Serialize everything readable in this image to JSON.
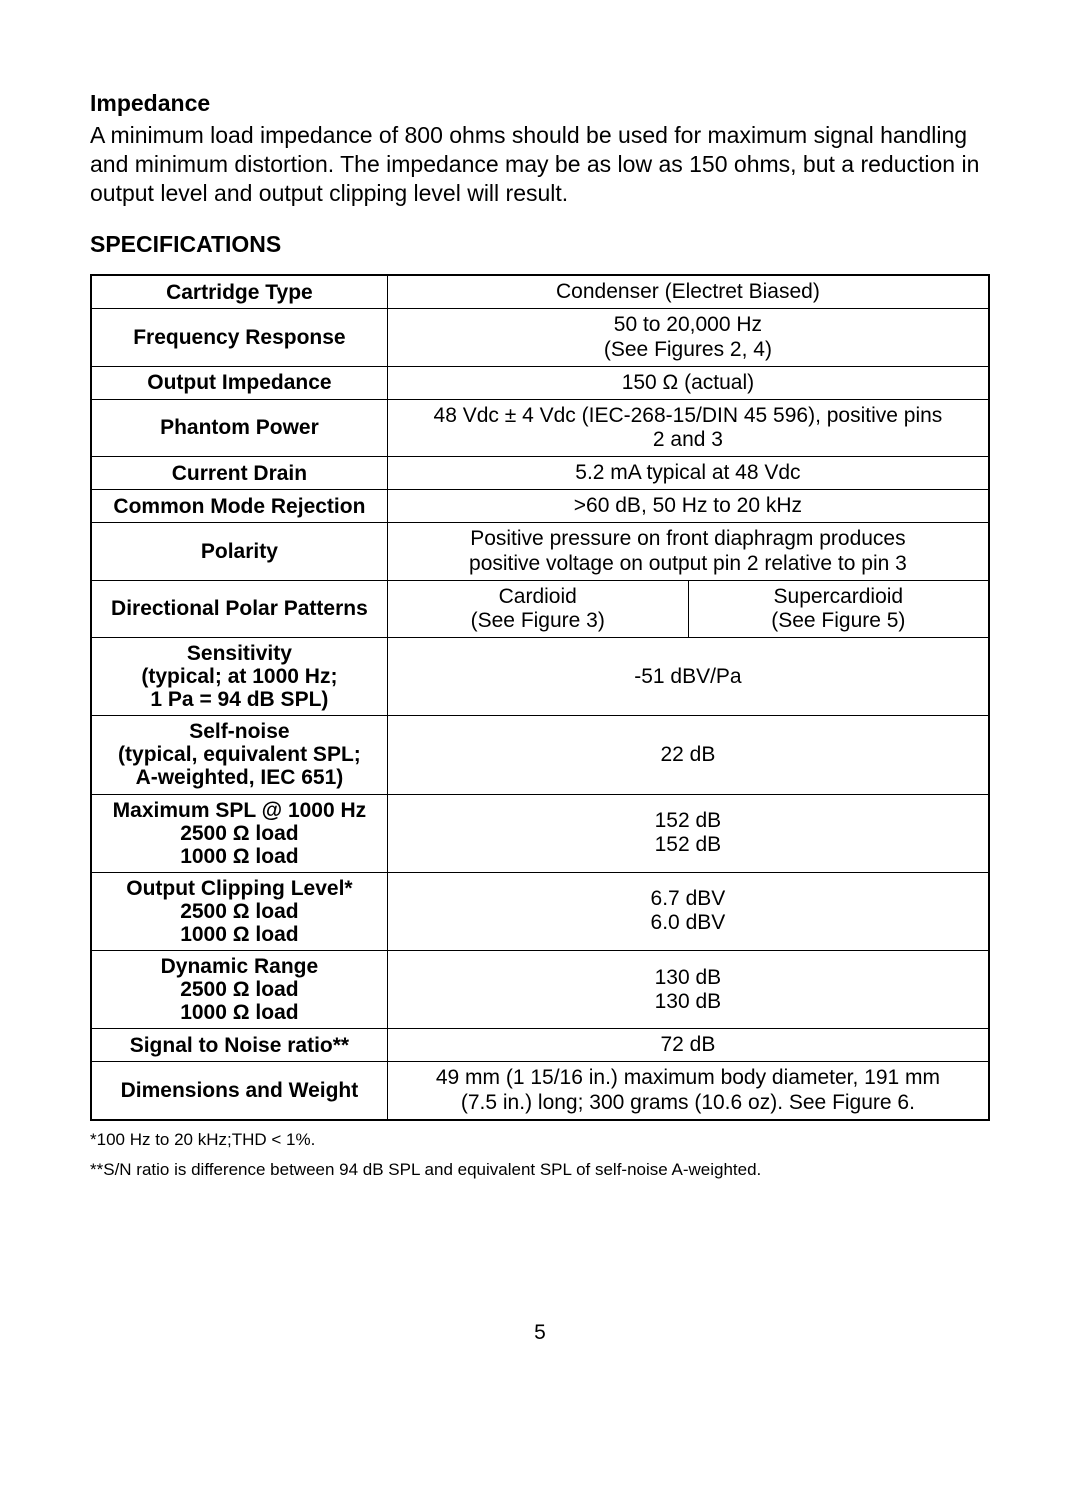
{
  "impedance": {
    "title": "Impedance",
    "body": "A minimum load impedance of 800 ohms should be used for maximum signal handling and minimum distortion. The impedance may be as low as 150 ohms, but a reduction in output level and output clipping level will result."
  },
  "specs_heading": "SPECIFICATIONS",
  "rows": {
    "cartridge": {
      "label": "Cartridge Type",
      "value": "Condenser (Electret Biased)"
    },
    "freq": {
      "label": "Frequency Response",
      "v1": "50 to 20,000 Hz",
      "v2": "(See Figures 2, 4)"
    },
    "out_imp": {
      "label": "Output Impedance",
      "value": "150 Ω (actual)"
    },
    "phantom": {
      "label": "Phantom Power",
      "v1": "48 Vdc ± 4 Vdc (IEC-268-15/DIN 45 596), positive pins",
      "v2": "2 and 3"
    },
    "drain": {
      "label": "Current Drain",
      "value": "5.2 mA typical at 48 Vdc"
    },
    "cmr": {
      "label": "Common Mode Rejection",
      "value": ">60 dB, 50 Hz to 20 kHz"
    },
    "polarity": {
      "label": "Polarity",
      "v1": "Positive pressure on front diaphragm produces",
      "v2": "positive voltage on output pin 2 relative to pin 3"
    },
    "polar_patterns": {
      "label": "Directional Polar Patterns",
      "left1": "Cardioid",
      "left2": "(See Figure 3)",
      "right1": "Supercardioid",
      "right2": "(See Figure 5)"
    },
    "sensitivity": {
      "l1": "Sensitivity",
      "l2": "(typical; at 1000 Hz;",
      "l3": "1 Pa = 94 dB SPL)",
      "value": "-51 dBV/Pa"
    },
    "selfnoise": {
      "l1": "Self-noise",
      "l2": "(typical, equivalent SPL;",
      "l3": "A-weighted, IEC 651)",
      "value": "22 dB"
    },
    "maxspl": {
      "l1": "Maximum SPL @ 1000 Hz",
      "l2": "2500 Ω load",
      "l3": "1000 Ω load",
      "v1": "152 dB",
      "v2": "152 dB"
    },
    "clipping": {
      "l1": "Output Clipping Level*",
      "l2": "2500 Ω load",
      "l3": "1000 Ω load",
      "v1": "6.7 dBV",
      "v2": "6.0 dBV"
    },
    "dynamic": {
      "l1": "Dynamic Range",
      "l2": "2500 Ω load",
      "l3": "1000 Ω load",
      "v1": "130 dB",
      "v2": "130 dB"
    },
    "snr": {
      "label": "Signal to Noise ratio**",
      "value": "72 dB"
    },
    "dims": {
      "label": "Dimensions and Weight",
      "v1": "49 mm (1 15/16 in.) maximum body diameter, 191 mm",
      "v2": "(7.5 in.) long; 300 grams (10.6 oz). See Figure 6."
    }
  },
  "footnote1": "*100 Hz to 20 kHz;THD < 1%.",
  "footnote2": "**S/N ratio is difference between 94 dB SPL and equivalent SPL of self-noise A-weighted.",
  "page_number": "5"
}
